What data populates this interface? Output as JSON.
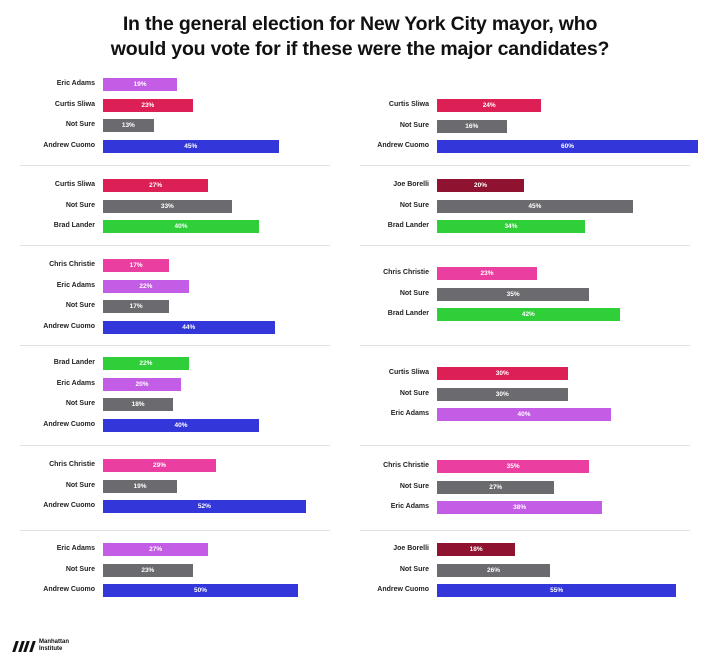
{
  "title": {
    "line1": "In the general election for New York City mayor, who",
    "line2": "would you vote for if these were the major candidates?"
  },
  "colors": {
    "Eric Adams": "#c45de6",
    "Curtis Sliwa": "#dc1f55",
    "Not Sure": "#6b6b6f",
    "Andrew Cuomo": "#3336d9",
    "Brad Lander": "#2fcf3a",
    "Chris Christie": "#ea3fa0",
    "Joe Borelli": "#8f1230"
  },
  "chart_data": [
    {
      "type": "bar",
      "orientation": "horizontal",
      "categories": [
        "Eric Adams",
        "Curtis Sliwa",
        "Not Sure",
        "Andrew Cuomo"
      ],
      "values": [
        19,
        23,
        13,
        45
      ],
      "labels": [
        "19%",
        "23%",
        "13%",
        "45%"
      ],
      "xlim": [
        0,
        60
      ]
    },
    {
      "type": "bar",
      "orientation": "horizontal",
      "categories": [
        "Curtis Sliwa",
        "Not Sure",
        "Andrew Cuomo"
      ],
      "values": [
        24,
        16,
        60
      ],
      "labels": [
        "24%",
        "16%",
        "60%"
      ],
      "xlim": [
        0,
        60
      ]
    },
    {
      "type": "bar",
      "orientation": "horizontal",
      "categories": [
        "Curtis Sliwa",
        "Not Sure",
        "Brad Lander"
      ],
      "values": [
        27,
        33,
        40
      ],
      "labels": [
        "27%",
        "33%",
        "40%"
      ],
      "xlim": [
        0,
        60
      ]
    },
    {
      "type": "bar",
      "orientation": "horizontal",
      "categories": [
        "Joe Borelli",
        "Not Sure",
        "Brad Lander"
      ],
      "values": [
        20,
        45,
        34
      ],
      "labels": [
        "20%",
        "45%",
        "34%"
      ],
      "xlim": [
        0,
        60
      ]
    },
    {
      "type": "bar",
      "orientation": "horizontal",
      "categories": [
        "Chris Christie",
        "Eric Adams",
        "Not Sure",
        "Andrew Cuomo"
      ],
      "values": [
        17,
        22,
        17,
        44
      ],
      "labels": [
        "17%",
        "22%",
        "17%",
        "44%"
      ],
      "xlim": [
        0,
        60
      ]
    },
    {
      "type": "bar",
      "orientation": "horizontal",
      "categories": [
        "Chris Christie",
        "Not Sure",
        "Brad Lander"
      ],
      "values": [
        23,
        35,
        42
      ],
      "labels": [
        "23%",
        "35%",
        "42%"
      ],
      "xlim": [
        0,
        60
      ]
    },
    {
      "type": "bar",
      "orientation": "horizontal",
      "categories": [
        "Brad Lander",
        "Eric Adams",
        "Not Sure",
        "Andrew Cuomo"
      ],
      "values": [
        22,
        20,
        18,
        40
      ],
      "labels": [
        "22%",
        "20%",
        "18%",
        "40%"
      ],
      "xlim": [
        0,
        60
      ]
    },
    {
      "type": "bar",
      "orientation": "horizontal",
      "categories": [
        "Curtis Sliwa",
        "Not Sure",
        "Eric Adams"
      ],
      "values": [
        30,
        30,
        40
      ],
      "labels": [
        "30%",
        "30%",
        "40%"
      ],
      "xlim": [
        0,
        60
      ]
    },
    {
      "type": "bar",
      "orientation": "horizontal",
      "categories": [
        "Chris Christie",
        "Not Sure",
        "Andrew Cuomo"
      ],
      "values": [
        29,
        19,
        52
      ],
      "labels": [
        "29%",
        "19%",
        "52%"
      ],
      "xlim": [
        0,
        60
      ]
    },
    {
      "type": "bar",
      "orientation": "horizontal",
      "categories": [
        "Chris Christie",
        "Not Sure",
        "Eric Adams"
      ],
      "values": [
        35,
        27,
        38
      ],
      "labels": [
        "35%",
        "27%",
        "38%"
      ],
      "xlim": [
        0,
        60
      ]
    },
    {
      "type": "bar",
      "orientation": "horizontal",
      "categories": [
        "Eric Adams",
        "Not Sure",
        "Andrew Cuomo"
      ],
      "values": [
        27,
        23,
        50
      ],
      "labels": [
        "27%",
        "23%",
        "50%"
      ],
      "xlim": [
        0,
        60
      ]
    },
    {
      "type": "bar",
      "orientation": "horizontal",
      "categories": [
        "Joe Borelli",
        "Not Sure",
        "Andrew Cuomo"
      ],
      "values": [
        18,
        26,
        55
      ],
      "labels": [
        "18%",
        "26%",
        "55%"
      ],
      "xlim": [
        0,
        60
      ]
    }
  ],
  "logo": {
    "name": "manhattan-institute-logo",
    "line1": "Manhattan",
    "line2": "Institute"
  }
}
